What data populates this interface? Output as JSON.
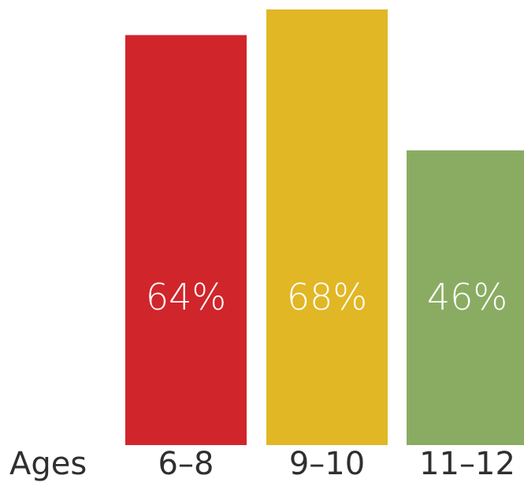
{
  "chart_data": {
    "type": "bar",
    "title": "",
    "xlabel": "Ages",
    "ylabel": "",
    "categories": [
      "6–8",
      "9–10",
      "11–12"
    ],
    "values": [
      64,
      68,
      46
    ],
    "value_labels": [
      "64%",
      "68%",
      "46%"
    ],
    "colors": [
      "#d0252b",
      "#e1b725",
      "#8aac62"
    ],
    "ylim": [
      0,
      100
    ],
    "grid": false,
    "legend": "none"
  }
}
